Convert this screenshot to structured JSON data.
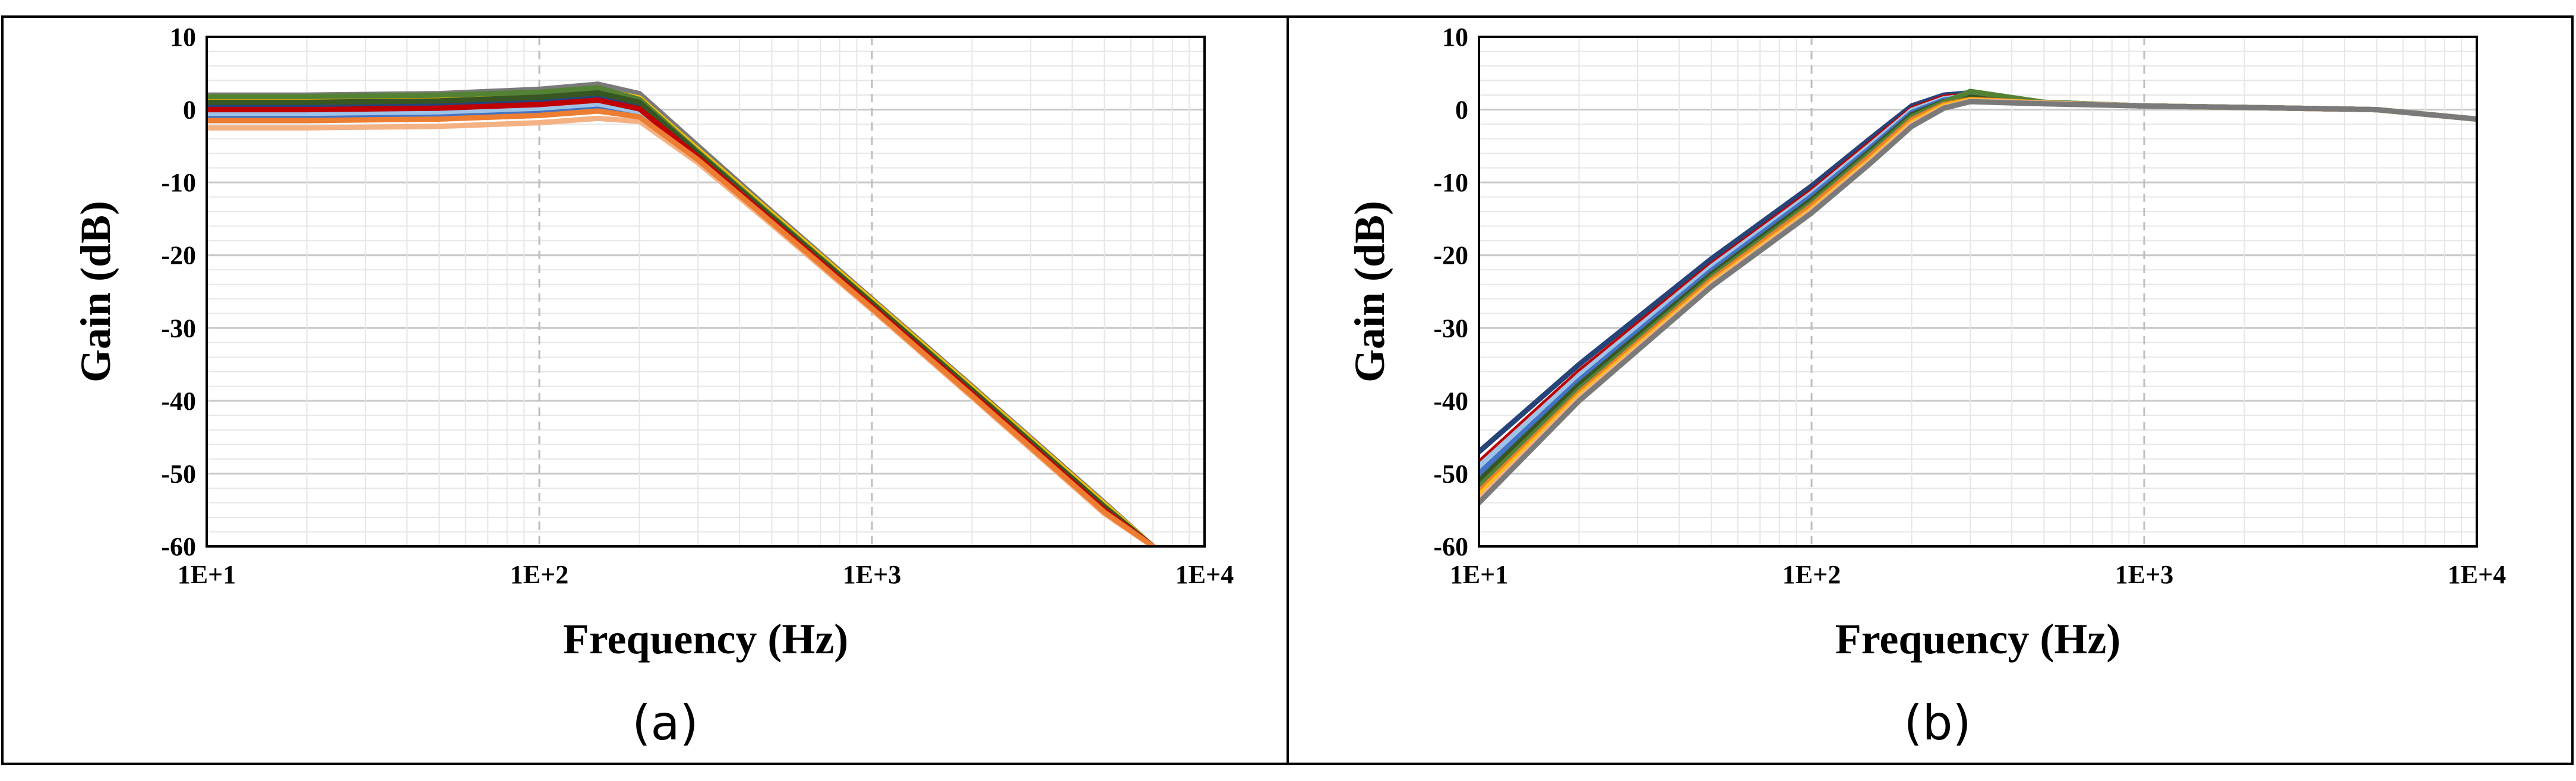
{
  "chart_data": [
    {
      "type": "line",
      "panel_label": "(a)",
      "xlabel": "Frequency (Hz)",
      "ylabel": "Gain (dB)",
      "x_scale": "log",
      "xlim": [
        10,
        10000
      ],
      "ylim": [
        -60,
        10
      ],
      "x_ticks": [
        "1E+1",
        "1E+2",
        "1E+3",
        "1E+4"
      ],
      "y_ticks": [
        "10",
        "0",
        "-10",
        "-20",
        "-30",
        "-40",
        "-50",
        "-60"
      ],
      "grid": "major and minor",
      "x": [
        10,
        20,
        50,
        100,
        150,
        200,
        300,
        500,
        1000,
        2000,
        5000,
        7000
      ],
      "series": [
        {
          "color": "#7a7a7a",
          "values": [
            2.0,
            2.0,
            2.2,
            2.8,
            3.5,
            2.2,
            -5.0,
            -14.0,
            -26.0,
            -38.0,
            -54.0,
            -60.0
          ]
        },
        {
          "color": "#ffc000",
          "values": [
            1.2,
            1.2,
            1.4,
            2.0,
            2.8,
            1.6,
            -5.5,
            -14.3,
            -26.2,
            -38.2,
            -54.2,
            -60.0
          ]
        },
        {
          "color": "#548235",
          "values": [
            1.8,
            1.8,
            2.0,
            2.4,
            3.0,
            1.4,
            -5.8,
            -14.6,
            -26.5,
            -38.5,
            -54.5,
            -60.0
          ]
        },
        {
          "color": "#264478",
          "values": [
            0.6,
            0.6,
            0.8,
            1.3,
            1.9,
            0.8,
            -6.2,
            -15.0,
            -26.8,
            -38.8,
            -54.8,
            -60.0
          ]
        },
        {
          "color": "#375623",
          "values": [
            1.0,
            1.0,
            1.2,
            1.7,
            2.3,
            1.0,
            -6.0,
            -14.8,
            -26.6,
            -38.6,
            -54.6,
            -60.0
          ]
        },
        {
          "color": "#4472c4",
          "values": [
            -1.0,
            -1.0,
            -0.8,
            -0.3,
            0.5,
            -0.6,
            -7.0,
            -15.6,
            -27.4,
            -39.4,
            -55.4,
            -60.0
          ]
        },
        {
          "color": "#9dc3e6",
          "values": [
            -0.5,
            -0.5,
            -0.3,
            0.2,
            0.8,
            -0.3,
            -6.7,
            -15.4,
            -27.2,
            -39.2,
            -55.2,
            -60.0
          ]
        },
        {
          "color": "#c00000",
          "values": [
            0.0,
            0.0,
            0.2,
            0.7,
            1.3,
            0.1,
            -6.5,
            -15.2,
            -27.0,
            -39.0,
            -55.0,
            -60.0
          ]
        },
        {
          "color": "#f4b183",
          "values": [
            -2.5,
            -2.5,
            -2.3,
            -1.8,
            -1.2,
            -1.6,
            -7.3,
            -15.8,
            -27.5,
            -39.5,
            -55.5,
            -60.0
          ]
        },
        {
          "color": "#ed7d31",
          "values": [
            -1.5,
            -1.5,
            -1.3,
            -0.8,
            -0.2,
            -1.0,
            -6.9,
            -15.5,
            -27.3,
            -39.3,
            -55.3,
            -60.0
          ]
        }
      ]
    },
    {
      "type": "line",
      "panel_label": "(b)",
      "xlabel": "Frequency (Hz)",
      "ylabel": "Gain (dB)",
      "x_scale": "log",
      "xlim": [
        10,
        10000
      ],
      "ylim": [
        -60,
        10
      ],
      "x_ticks": [
        "1E+1",
        "1E+2",
        "1E+3",
        "1E+4"
      ],
      "y_ticks": [
        "10",
        "0",
        "-10",
        "-20",
        "-30",
        "-40",
        "-50",
        "-60"
      ],
      "grid": "major and minor",
      "x": [
        10,
        20,
        50,
        100,
        150,
        200,
        250,
        300,
        500,
        1000,
        2000,
        5000,
        10000
      ],
      "series": [
        {
          "color": "#264478",
          "values": [
            -47.0,
            -35.0,
            -20.5,
            -10.5,
            -4.0,
            0.5,
            2.0,
            2.3,
            1.0,
            0.5,
            0.3,
            0.0,
            -1.3
          ]
        },
        {
          "color": "#c00000",
          "values": [
            -48.5,
            -36.0,
            -21.3,
            -11.2,
            -4.6,
            0.1,
            1.7,
            2.0,
            0.9,
            0.5,
            0.3,
            0.0,
            -1.3
          ]
        },
        {
          "color": "#9dc3e6",
          "values": [
            -49.0,
            -36.5,
            -21.6,
            -11.5,
            -4.9,
            -0.1,
            1.5,
            1.9,
            0.9,
            0.5,
            0.3,
            0.0,
            -1.3
          ]
        },
        {
          "color": "#4472c4",
          "values": [
            -50.0,
            -37.2,
            -22.1,
            -11.9,
            -5.3,
            -0.4,
            1.3,
            1.8,
            0.9,
            0.5,
            0.3,
            0.0,
            -1.3
          ]
        },
        {
          "color": "#375623",
          "values": [
            -51.0,
            -37.8,
            -22.6,
            -12.4,
            -5.7,
            -0.7,
            1.1,
            1.7,
            0.9,
            0.5,
            0.3,
            0.0,
            -1.3
          ]
        },
        {
          "color": "#548235",
          "values": [
            -51.8,
            -38.4,
            -23.0,
            -12.8,
            -6.0,
            -1.0,
            1.0,
            2.5,
            1.0,
            0.5,
            0.3,
            0.0,
            -1.3
          ]
        },
        {
          "color": "#ed7d31",
          "values": [
            -52.5,
            -38.9,
            -23.4,
            -13.2,
            -6.4,
            -1.4,
            0.7,
            1.4,
            0.9,
            0.5,
            0.3,
            0.0,
            -1.3
          ]
        },
        {
          "color": "#ffc000",
          "values": [
            -53.0,
            -39.3,
            -23.8,
            -13.7,
            -6.9,
            -1.8,
            0.5,
            1.3,
            0.9,
            0.5,
            0.3,
            0.0,
            -1.3
          ]
        },
        {
          "color": "#f4b183",
          "values": [
            -53.5,
            -39.6,
            -24.0,
            -13.9,
            -7.1,
            -2.0,
            0.3,
            1.2,
            0.9,
            0.5,
            0.3,
            0.0,
            -1.3
          ]
        },
        {
          "color": "#7a7a7a",
          "values": [
            -54.0,
            -40.0,
            -24.3,
            -14.2,
            -7.4,
            -2.3,
            0.2,
            1.1,
            0.8,
            0.5,
            0.3,
            0.0,
            -1.3
          ]
        }
      ]
    }
  ]
}
